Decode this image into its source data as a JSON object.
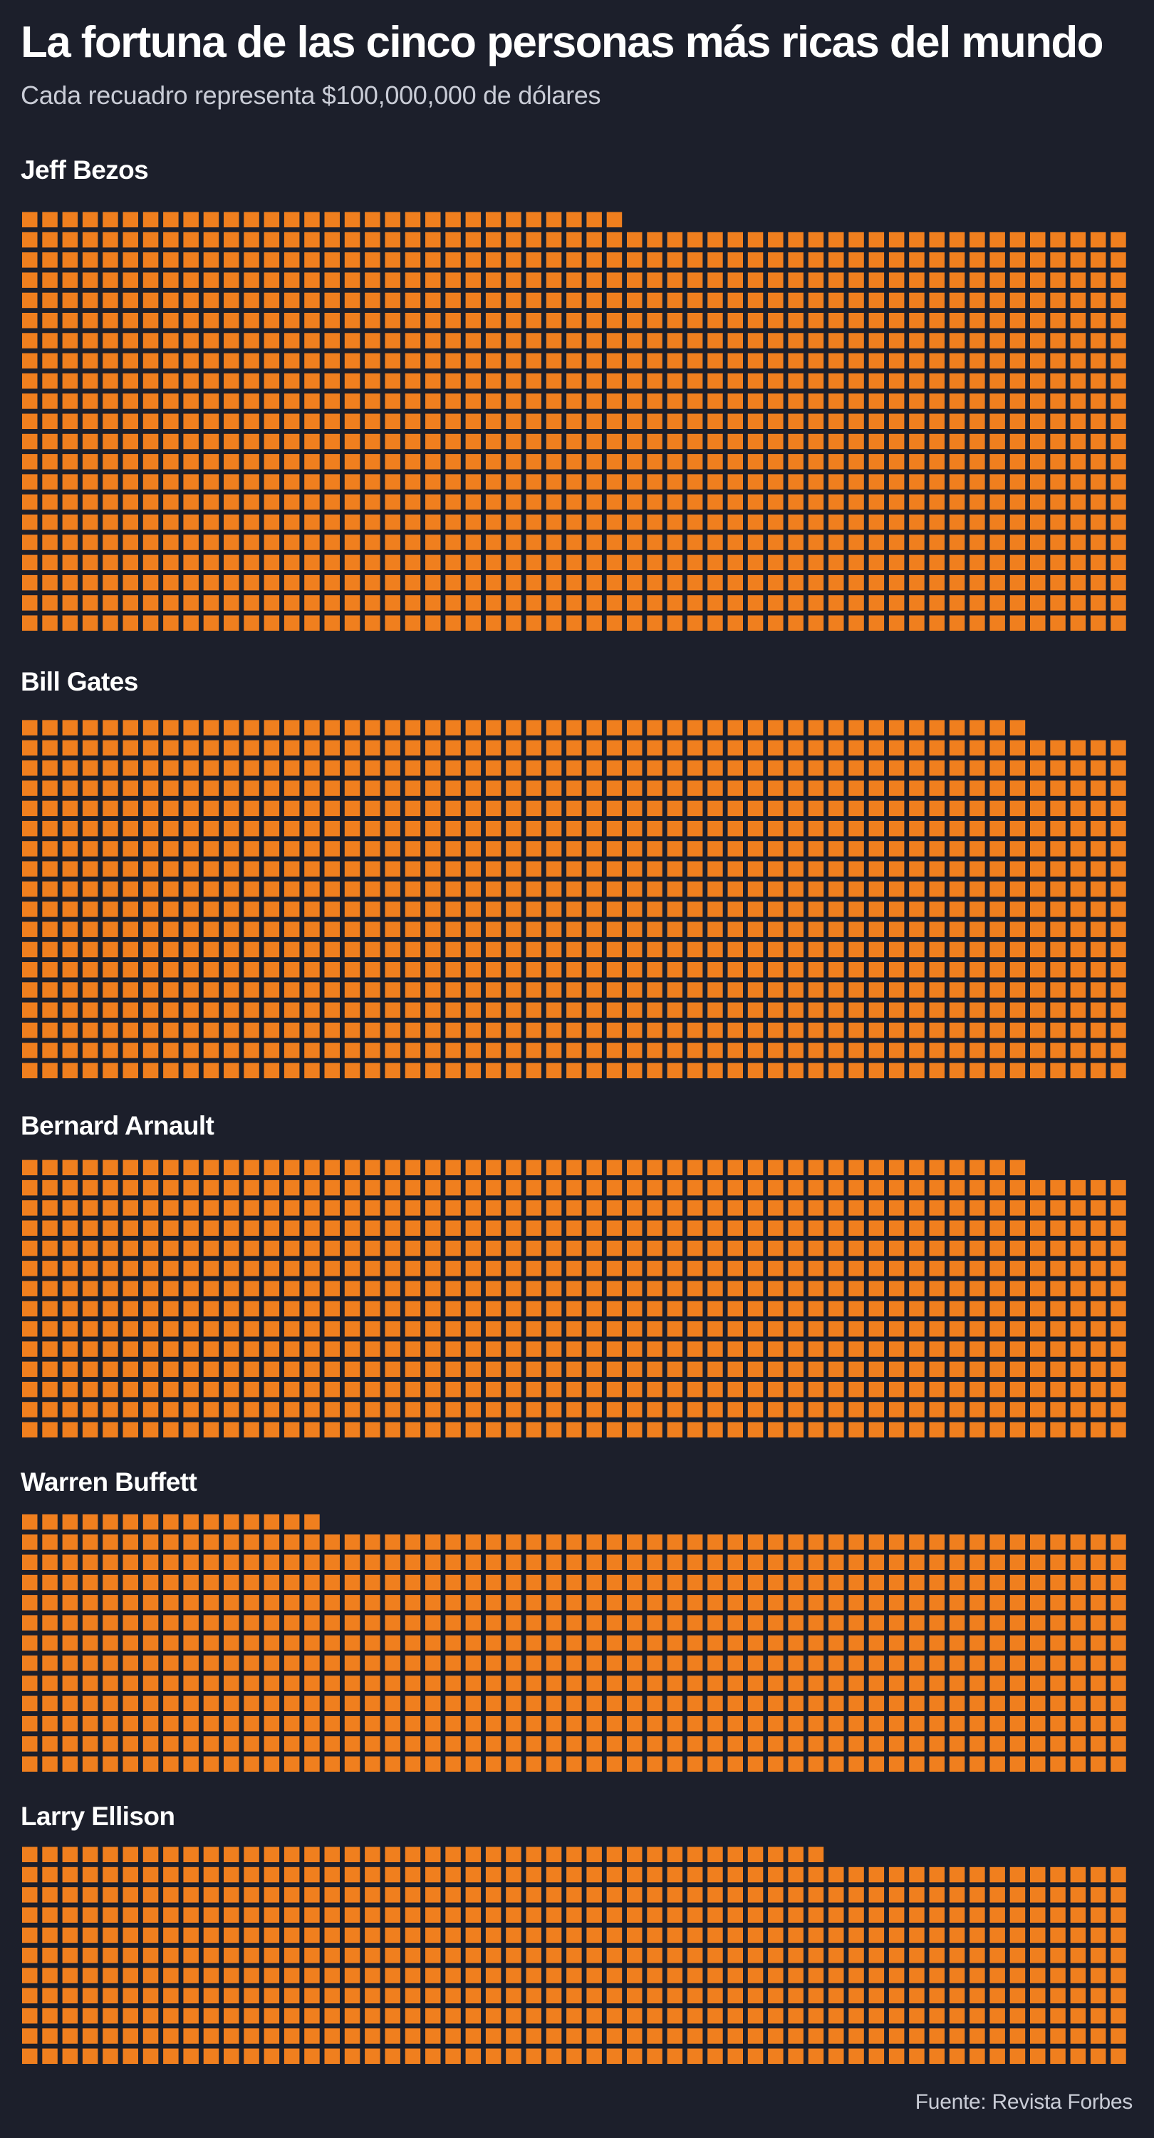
{
  "title": "La fortuna de las cinco personas más ricas del mundo",
  "subtitle": "Cada recuadro representa $100,000,000 de dólares",
  "source": "Fuente: Revista Forbes",
  "colors": {
    "background": "#1c1f2b",
    "square": "#f07f1e",
    "text": "#ffffff",
    "subtext": "#c9ccd6"
  },
  "chart_data": {
    "type": "waffle",
    "unit_value": 100000000,
    "unit_label": "Cada recuadro representa $100,000,000 de dólares",
    "columns": 55,
    "series": [
      {
        "name": "Jeff Bezos",
        "squares": 1130
      },
      {
        "name": "Bill Gates",
        "squares": 985
      },
      {
        "name": "Bernard Arnault",
        "squares": 765
      },
      {
        "name": "Warren Buffett",
        "squares": 675
      },
      {
        "name": "Larry Ellison",
        "squares": 590
      }
    ]
  }
}
